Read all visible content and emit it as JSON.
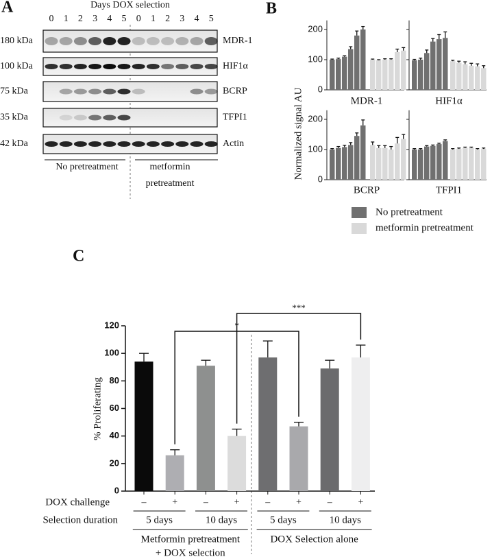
{
  "panel_letters": [
    "A",
    "B",
    "C"
  ],
  "blot": {
    "title": "Days DOX selection",
    "lanes": [
      "0",
      "1",
      "2",
      "3",
      "4",
      "5",
      "0",
      "1",
      "2",
      "3",
      "4",
      "5"
    ],
    "rows": [
      {
        "size": "180 kDa",
        "protein": "MDR-1"
      },
      {
        "size": "100 kDa",
        "protein": "HIF1α"
      },
      {
        "size": "75 kDa",
        "protein": "BCRP"
      },
      {
        "size": "35 kDa",
        "protein": "TFPI1"
      },
      {
        "size": "42 kDa",
        "protein": "Actin"
      }
    ],
    "groups": [
      {
        "label": [
          "No pretreatment"
        ]
      },
      {
        "label": [
          "metformin",
          "pretreatment"
        ]
      }
    ]
  },
  "chart_data": [
    {
      "type": "bar-panels",
      "ylabel": "Normalized signal AU",
      "ylim": [
        0,
        230
      ],
      "yticks": [
        0,
        100,
        200
      ],
      "legend": [
        {
          "name": "No pretreatment",
          "color": "#707070"
        },
        {
          "name": "metformin pretreatment",
          "color": "#d9d9d9"
        }
      ],
      "panels": [
        {
          "title": "MDR-1",
          "series": [
            {
              "values": [
                100,
                102,
                110,
                135,
                180,
                200
              ],
              "errors": [
                2,
                3,
                3,
                8,
                15,
                10
              ]
            },
            {
              "values": [
                100,
                98,
                100,
                100,
                125,
                130
              ],
              "errors": [
                2,
                2,
                3,
                3,
                10,
                10
              ]
            }
          ]
        },
        {
          "title": "HIF1α",
          "series": [
            {
              "values": [
                98,
                100,
                122,
                160,
                168,
                172
              ],
              "errors": [
                3,
                5,
                10,
                10,
                15,
                20
              ]
            },
            {
              "values": [
                95,
                90,
                85,
                80,
                78,
                72
              ],
              "errors": [
                3,
                5,
                8,
                8,
                8,
                8
              ]
            }
          ]
        },
        {
          "title": "BCRP",
          "series": [
            {
              "values": [
                100,
                105,
                108,
                115,
                145,
                180
              ],
              "errors": [
                3,
                5,
                6,
                8,
                10,
                18
              ]
            },
            {
              "values": [
                115,
                105,
                105,
                100,
                120,
                135
              ],
              "errors": [
                10,
                8,
                8,
                10,
                20,
                15
              ]
            }
          ]
        },
        {
          "title": "TFPI1",
          "series": [
            {
              "values": [
                100,
                100,
                110,
                112,
                118,
                128
              ],
              "errors": [
                3,
                3,
                3,
                3,
                3,
                4
              ]
            },
            {
              "values": [
                100,
                102,
                105,
                105,
                100,
                102
              ],
              "errors": [
                3,
                3,
                3,
                3,
                3,
                3
              ]
            }
          ]
        }
      ]
    },
    {
      "type": "bar",
      "ylabel": "% Proliferating",
      "ylim": [
        0,
        120
      ],
      "yticks": [
        0,
        20,
        40,
        60,
        80,
        100,
        120
      ],
      "values": [
        94,
        26,
        91,
        40,
        97,
        47,
        89,
        97
      ],
      "errors": [
        6,
        4,
        4,
        5,
        12,
        3,
        6,
        9
      ],
      "colors": [
        "#0a0a0a",
        "#aeaeb2",
        "#8e908f",
        "#dcdcdc",
        "#6e6e70",
        "#a9a9ac",
        "#6b6b6d",
        "#eeeeef"
      ],
      "rows": [
        {
          "label": "DOX challenge",
          "cells": [
            "–",
            "+",
            "–",
            "+",
            "–",
            "+",
            "–",
            "+"
          ]
        },
        {
          "label": "Selection duration",
          "spans": [
            "5 days",
            "10 days",
            "5 days",
            "10 days"
          ]
        }
      ],
      "groups": [
        [
          "Metformin pretreatment",
          "+ DOX selection"
        ],
        [
          "DOX Selection alone"
        ]
      ],
      "significance": [
        {
          "label": "*"
        },
        {
          "label": "***"
        }
      ]
    }
  ]
}
